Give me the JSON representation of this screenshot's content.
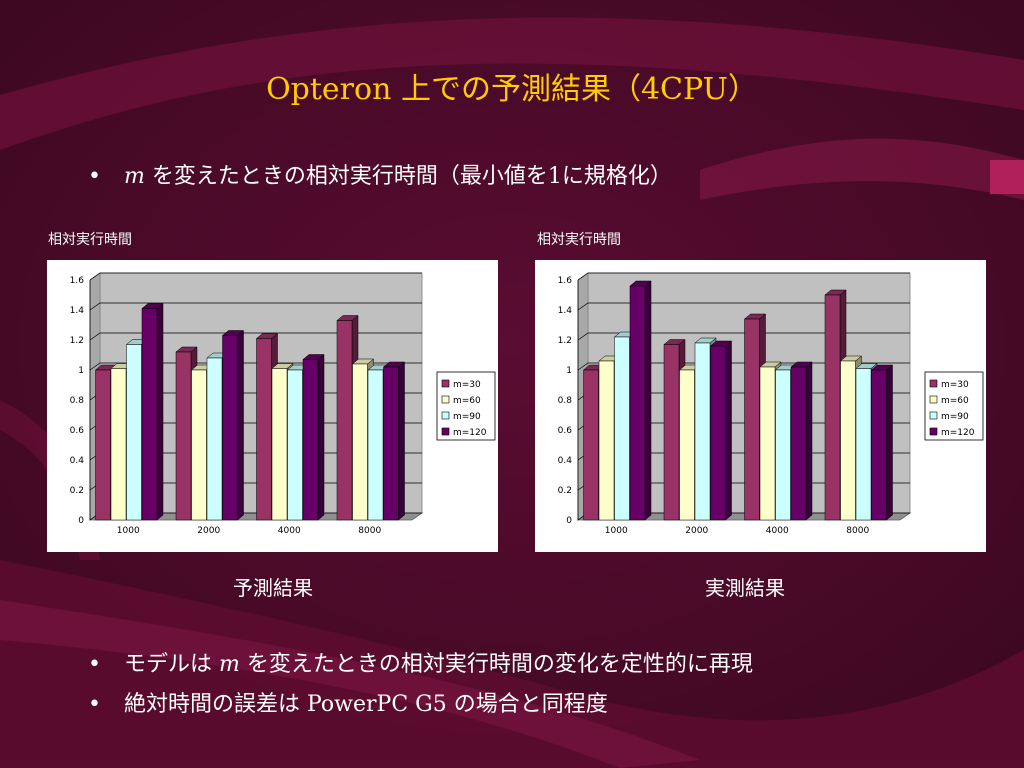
{
  "slide": {
    "title_latin": "Opteron",
    "title_jp": "上での予測結果",
    "title_paren": "（4CPU）",
    "bullet1_var": "m",
    "bullet1_text": "を変えたときの相対実行時間（最小値を",
    "bullet1_num": "1",
    "bullet1_end": "に規格化）",
    "bullet2_pre": "モデルは",
    "bullet2_var": "m",
    "bullet2_post": "を変えたときの相対実行時間の変化を定性的に再現",
    "bullet3_pre": "絶対時間の誤差は",
    "bullet3_latin": "PowerPC G5",
    "bullet3_post": "の場合と同程度"
  },
  "colors": {
    "background": "#4a0a28",
    "title": "#ffcc00",
    "m30": "#993366",
    "m60": "#ffffcc",
    "m90": "#ccffff",
    "m120": "#660066",
    "plot_wall": "#c0c0c0"
  },
  "chart_data": [
    {
      "type": "bar",
      "caption": "予測結果",
      "ylabel": "相対実行時間",
      "categories": [
        "1000",
        "2000",
        "4000",
        "8000"
      ],
      "ylim": [
        0,
        1.6
      ],
      "yticks": [
        "0",
        "0.2",
        "0.4",
        "0.6",
        "0.8",
        "1",
        "1.2",
        "1.4",
        "1.6"
      ],
      "grid": true,
      "legend": "right",
      "series": [
        {
          "name": "m=30",
          "values": [
            1.0,
            1.12,
            1.21,
            1.33
          ]
        },
        {
          "name": "m=60",
          "values": [
            1.01,
            1.0,
            1.01,
            1.04
          ]
        },
        {
          "name": "m=90",
          "values": [
            1.17,
            1.08,
            1.0,
            1.0
          ]
        },
        {
          "name": "m=120",
          "values": [
            1.41,
            1.23,
            1.07,
            1.02
          ]
        }
      ]
    },
    {
      "type": "bar",
      "caption": "実測結果",
      "ylabel": "相対実行時間",
      "categories": [
        "1000",
        "2000",
        "4000",
        "8000"
      ],
      "ylim": [
        0,
        1.6
      ],
      "yticks": [
        "0",
        "0.2",
        "0.4",
        "0.6",
        "0.8",
        "1",
        "1.2",
        "1.4",
        "1.6"
      ],
      "grid": true,
      "legend": "right",
      "series": [
        {
          "name": "m=30",
          "values": [
            1.0,
            1.17,
            1.34,
            1.5
          ]
        },
        {
          "name": "m=60",
          "values": [
            1.06,
            1.0,
            1.02,
            1.06
          ]
        },
        {
          "name": "m=90",
          "values": [
            1.22,
            1.18,
            1.0,
            1.01
          ]
        },
        {
          "name": "m=120",
          "values": [
            1.56,
            1.16,
            1.02,
            1.0
          ]
        }
      ]
    }
  ]
}
